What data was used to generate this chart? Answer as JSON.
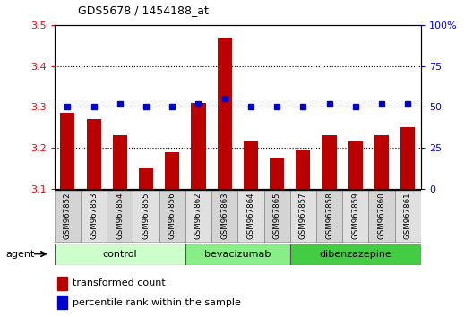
{
  "title": "GDS5678 / 1454188_at",
  "samples": [
    "GSM967852",
    "GSM967853",
    "GSM967854",
    "GSM967855",
    "GSM967856",
    "GSM967862",
    "GSM967863",
    "GSM967864",
    "GSM967865",
    "GSM967857",
    "GSM967858",
    "GSM967859",
    "GSM967860",
    "GSM967861"
  ],
  "transformed_count": [
    3.285,
    3.27,
    3.23,
    3.15,
    3.19,
    3.31,
    3.47,
    3.215,
    3.175,
    3.195,
    3.23,
    3.215,
    3.23,
    3.25
  ],
  "percentile_rank": [
    50,
    50,
    52,
    50,
    50,
    52,
    55,
    50,
    50,
    50,
    52,
    50,
    52,
    52
  ],
  "bar_color": "#bb0000",
  "dot_color": "#0000cc",
  "groups": [
    {
      "label": "control",
      "start": 0,
      "end": 5,
      "color": "#ccffcc"
    },
    {
      "label": "bevacizumab",
      "start": 5,
      "end": 9,
      "color": "#88ee88"
    },
    {
      "label": "dibenzazepine",
      "start": 9,
      "end": 14,
      "color": "#44cc44"
    }
  ],
  "ylim_left": [
    3.1,
    3.5
  ],
  "ylim_right": [
    0,
    100
  ],
  "yticks_left": [
    3.1,
    3.2,
    3.3,
    3.4,
    3.5
  ],
  "yticks_right": [
    0,
    25,
    50,
    75,
    100
  ],
  "ytick_right_labels": [
    "0",
    "25",
    "50",
    "75",
    "100%"
  ],
  "grid_color": "#000000",
  "background_color": "#ffffff",
  "plot_bg": "#ffffff",
  "agent_label": "agent",
  "legend_bar_label": "transformed count",
  "legend_dot_label": "percentile rank within the sample"
}
